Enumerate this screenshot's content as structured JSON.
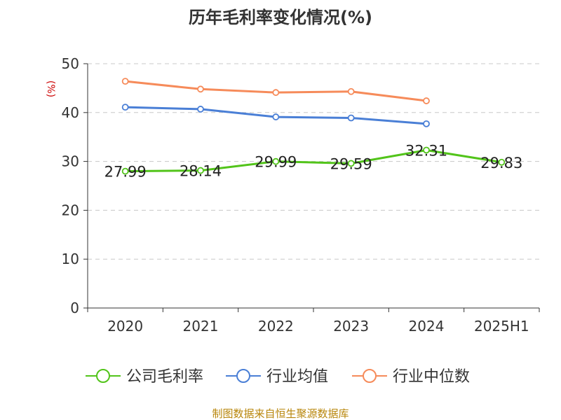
{
  "chart_data": {
    "type": "line",
    "title": "历年毛利率变化情况(%)",
    "ylabel": "(%)",
    "categories": [
      "2020",
      "2021",
      "2022",
      "2023",
      "2024",
      "2025H1"
    ],
    "ylim": [
      0,
      50
    ],
    "yticks": [
      "0",
      "10",
      "20",
      "30",
      "40",
      "50"
    ],
    "grid": true,
    "legend_position": "bottom",
    "series": [
      {
        "name": "公司毛利率",
        "color": "#52c41a",
        "values": [
          27.99,
          28.14,
          29.99,
          29.59,
          32.31,
          29.83
        ],
        "labels": [
          "27.99",
          "28.14",
          "29.99",
          "29.59",
          "32.31",
          "29.83"
        ]
      },
      {
        "name": "行业均值",
        "color": "#4a7fd6",
        "values": [
          41.1,
          40.7,
          39.1,
          38.9,
          37.7,
          null
        ]
      },
      {
        "name": "行业中位数",
        "color": "#f68b5a",
        "values": [
          46.4,
          44.8,
          44.1,
          44.3,
          42.4,
          null
        ]
      }
    ]
  },
  "source": "制图数据来自恒生聚源数据库"
}
